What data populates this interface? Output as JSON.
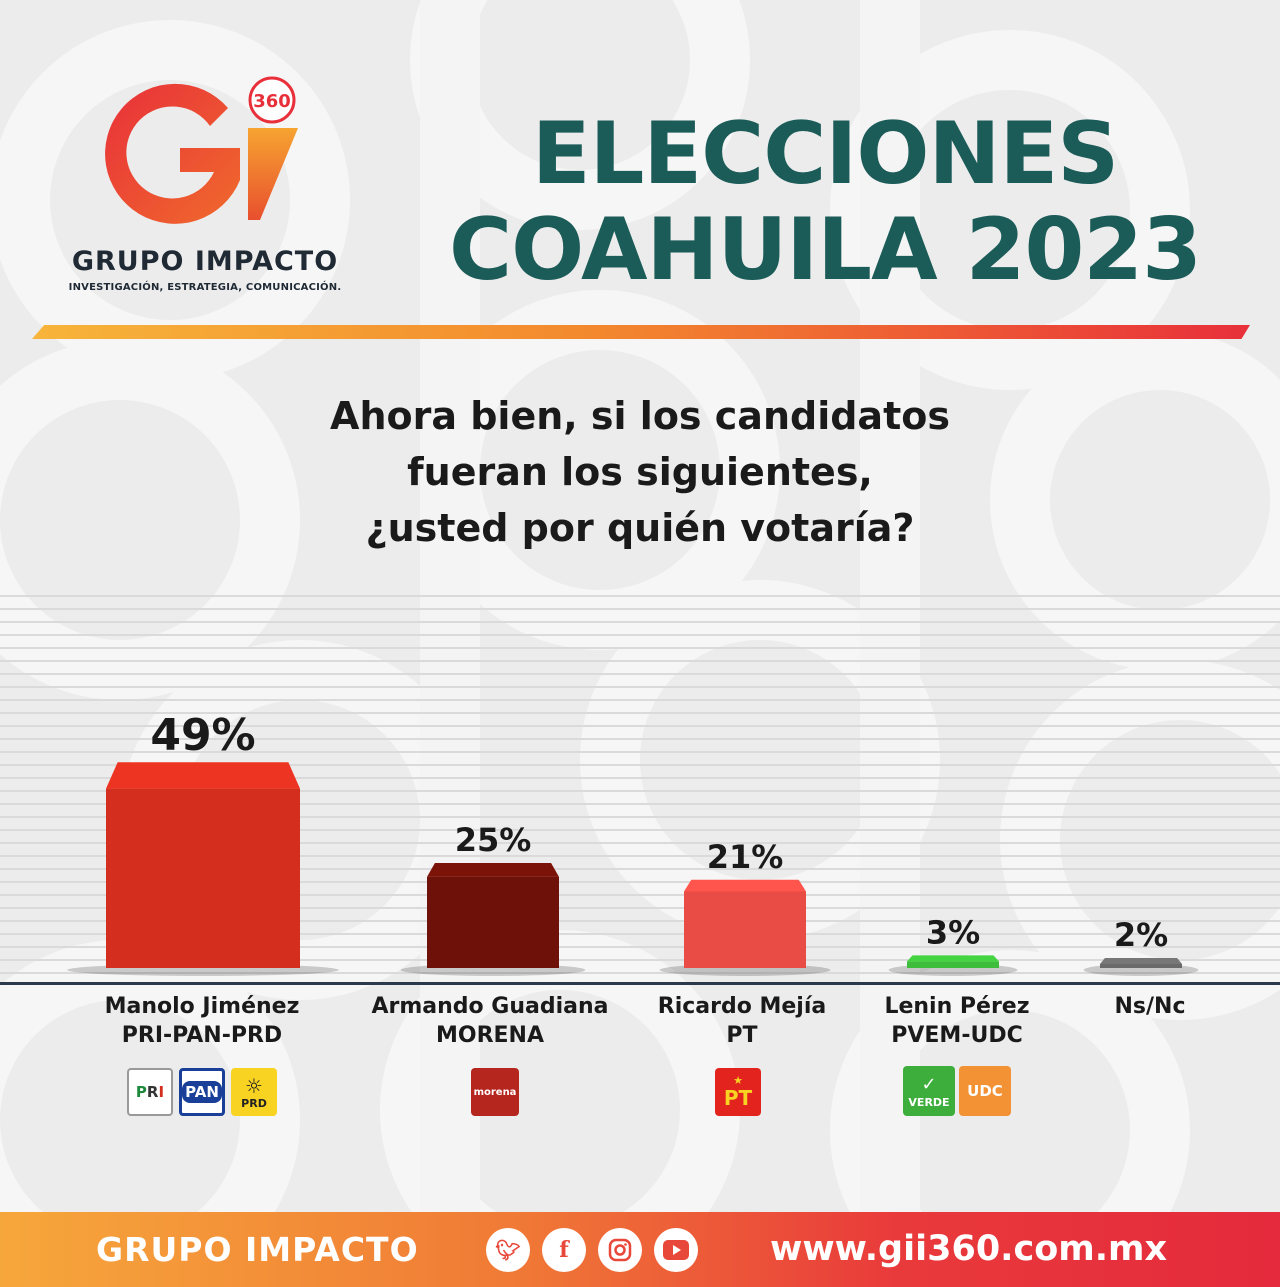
{
  "brand": {
    "logo_mark": "Gi",
    "logo_badge": "360",
    "name": "GRUPO IMPACTO",
    "tagline": "INVESTIGACIÓN, ESTRATEGIA, COMUNICACIÓN."
  },
  "header": {
    "title_line1": "ELECCIONES",
    "title_line2": "COAHUILA 2023",
    "title_color": "#1b5b58"
  },
  "question": {
    "line1": "Ahora bien, si los candidatos",
    "line2": "fueran los siguientes,",
    "line3": "¿usted por quién votaría?"
  },
  "chart_data": {
    "type": "bar",
    "title": "",
    "xlabel": "",
    "ylabel": "",
    "ylim": [
      0,
      50
    ],
    "grid": true,
    "categories": [
      "Manolo Jiménez PRI-PAN-PRD",
      "Armando Guadiana MORENA",
      "Ricardo Mejía PT",
      "Lenin Pérez PVEM-UDC",
      "Ns/Nc"
    ],
    "values": [
      49,
      25,
      21,
      3,
      2
    ],
    "value_labels": [
      "49%",
      "25%",
      "21%",
      "3%",
      "2%"
    ],
    "colors": [
      "#d42e1f",
      "#6e1108",
      "#e94c44",
      "#3dbd3b",
      "#6a6a6a"
    ]
  },
  "candidates": [
    {
      "name": "Manolo Jiménez",
      "party": "PRI-PAN-PRD",
      "logos": [
        "PRI",
        "PAN",
        "PRD"
      ]
    },
    {
      "name": "Armando Guadiana",
      "party": "MORENA",
      "logos": [
        "morena"
      ]
    },
    {
      "name": "Ricardo Mejía",
      "party": "PT",
      "logos": [
        "PT"
      ]
    },
    {
      "name": "Lenin Pérez",
      "party": "PVEM-UDC",
      "logos": [
        "VERDE",
        "UDC"
      ]
    },
    {
      "name": "Ns/Nc",
      "party": "",
      "logos": []
    }
  ],
  "footer": {
    "brand": "GRUPO IMPACTO",
    "url": "www.gii360.com.mx",
    "social_icons": [
      "twitter-icon",
      "facebook-icon",
      "instagram-icon",
      "youtube-icon"
    ]
  }
}
